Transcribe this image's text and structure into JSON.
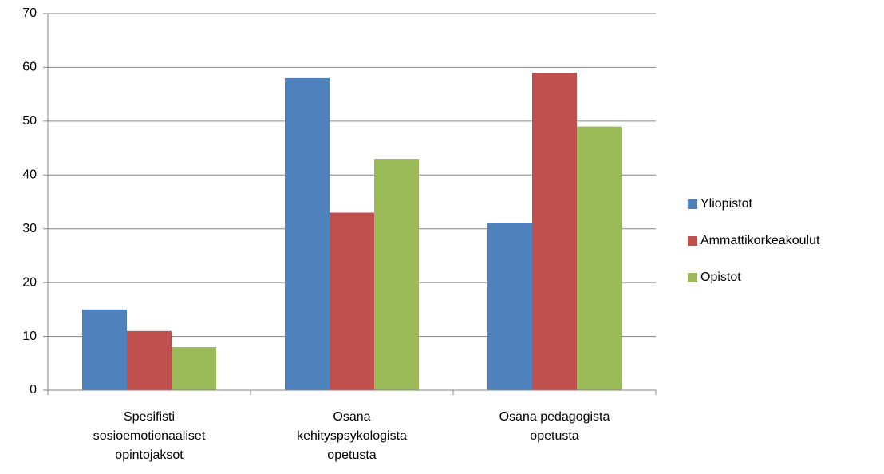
{
  "chart_data": {
    "type": "bar",
    "categories": [
      "Spesifisti\nsosioemotionaaliset\nopintojaksot",
      "Osana\nkehityspsykologista\nopetusta",
      "Osana pedagogista\nopetusta"
    ],
    "series": [
      {
        "name": "Yliopistot",
        "color": "#4f81bd",
        "values": [
          15,
          58,
          31
        ]
      },
      {
        "name": "Ammattikorkeakoulut",
        "color": "#c0504d",
        "values": [
          11,
          33,
          59
        ]
      },
      {
        "name": "Opistot",
        "color": "#9bbb59",
        "values": [
          8,
          43,
          49
        ]
      }
    ],
    "ylim": [
      0,
      70
    ],
    "yticks": [
      0,
      10,
      20,
      30,
      40,
      50,
      60,
      70
    ],
    "grid": true,
    "legend": "right"
  }
}
